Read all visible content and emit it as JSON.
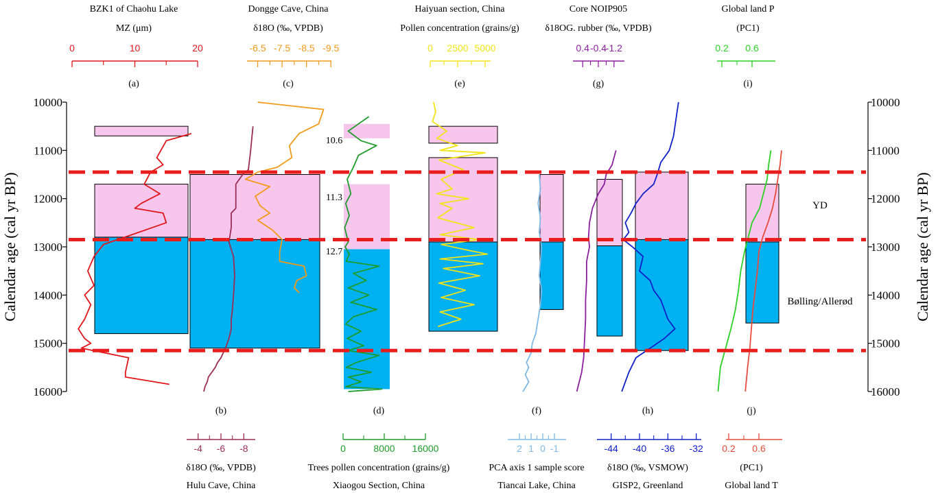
{
  "figure": {
    "y_axis": {
      "label": "Calendar age (cal yr BP)",
      "ticks": [
        10000,
        11000,
        12000,
        13000,
        14000,
        15000,
        16000
      ],
      "range": [
        10000,
        16000
      ]
    },
    "events": [
      {
        "label": "YD",
        "age": 12150
      },
      {
        "label": "Bølling/Allerød",
        "age": 14100
      }
    ],
    "intervals_labels": [
      {
        "text": "10.6",
        "age": 10770
      },
      {
        "text": "11.3",
        "age": 11870
      },
      {
        "text": "12.7",
        "age": 13700
      }
    ],
    "boundaries": [
      11450,
      12850,
      15150
    ]
  },
  "chart_data": {
    "type": "line",
    "title": "",
    "panels": [
      {
        "id": "a",
        "letter": "(a)",
        "title": "BZK1 of Chaohu Lake",
        "unit": "MZ (μm)",
        "axis_position": "top",
        "color": "#e0161b",
        "xlim": [
          0,
          20
        ],
        "ticks": [
          0,
          10,
          20
        ],
        "x": [
          19,
          15,
          13.5,
          14.5,
          12.5,
          11.5,
          14,
          11,
          10,
          14.5,
          15,
          9.5,
          5,
          3.5,
          2.5,
          3.5,
          2,
          3,
          2,
          1,
          2,
          3,
          1.5,
          9,
          8.5,
          8.5,
          15.5
        ],
        "y": [
          10650,
          10800,
          11150,
          11300,
          11450,
          11700,
          11900,
          12100,
          12200,
          12300,
          12500,
          12750,
          12950,
          13200,
          13500,
          13800,
          14000,
          14200,
          14500,
          14700,
          14900,
          15000,
          15100,
          15300,
          15600,
          15700,
          15850
        ]
      },
      {
        "id": "b",
        "letter": "(b)",
        "title": "Hulu Cave, China",
        "unit": "δ18O (‰, VPDB)",
        "axis_position": "bottom",
        "color": "#9b2d55",
        "xlim": [
          -3,
          -9
        ],
        "ticks": [
          -4,
          -6,
          -8
        ],
        "x": [
          -8.8,
          -8.6,
          -8.4,
          -7.9,
          -7.3,
          -7.3,
          -6.9,
          -6.9,
          -6.7,
          -7.1,
          -7.2,
          -7.1,
          -7.0,
          -6.9,
          -6.9,
          -6.7,
          -6.4,
          -6.2,
          -6.0,
          -5.7,
          -5.5,
          -5.2,
          -4.9,
          -4.8,
          -4.6,
          -4.5
        ],
        "y": [
          10500,
          11000,
          11400,
          11500,
          11700,
          12200,
          12300,
          12600,
          12900,
          13200,
          13600,
          14000,
          14300,
          14500,
          14700,
          14900,
          15100,
          15200,
          15300,
          15400,
          15500,
          15600,
          15700,
          15800,
          15900,
          16000
        ]
      },
      {
        "id": "c",
        "letter": "(c)",
        "title": "Dongge Cave, China",
        "unit": "δ18O (‰, VPDB)",
        "axis_position": "top",
        "color": "#f29a1a",
        "xlim": [
          -5.5,
          -10
        ],
        "ticks": [
          -6.5,
          -7.5,
          -8.5,
          -9.5
        ],
        "x": [
          -6.5,
          -9.2,
          -9.0,
          -8.2,
          -7.8,
          -7.9,
          -7.3,
          -6.5,
          -6.0,
          -7.0,
          -6.4,
          -6.6,
          -7.0,
          -6.5,
          -7.1,
          -7.5,
          -7.4,
          -7.4,
          -8.4,
          -8.5,
          -8.1,
          -8.0,
          -8.2
        ],
        "y": [
          10000,
          10150,
          10450,
          10650,
          10900,
          11150,
          11350,
          11450,
          11600,
          11750,
          11950,
          12150,
          12300,
          12450,
          12650,
          12850,
          13100,
          13300,
          13400,
          13600,
          13700,
          13850,
          13950
        ]
      },
      {
        "id": "d",
        "letter": "(d)",
        "title": "Xiaogou Section, China",
        "unit": "Trees pollen concentration (grains/g)",
        "axis_position": "bottom",
        "color": "#1e9c2a",
        "xlim": [
          0,
          16000
        ],
        "ticks": [
          0,
          8000,
          16000
        ],
        "x": [
          5000,
          1000,
          3500,
          6500,
          3000,
          2000,
          800,
          1500,
          500,
          1200,
          300,
          1000,
          400,
          1200,
          600,
          7000,
          2000,
          4500,
          1000,
          5000,
          1500,
          6500,
          2000,
          500,
          3500,
          800,
          4000,
          1000,
          7000,
          2500,
          600,
          5500,
          1000,
          3500,
          500,
          7500,
          1000
        ],
        "y": [
          10300,
          10600,
          10800,
          10900,
          11100,
          11350,
          11600,
          11900,
          12100,
          12350,
          12600,
          12900,
          13000,
          13150,
          13300,
          13400,
          13550,
          13700,
          13850,
          14000,
          14150,
          14300,
          14450,
          14600,
          14750,
          14900,
          15050,
          15150,
          15250,
          15400,
          15500,
          15600,
          15700,
          15800,
          15900,
          15950,
          16000
        ]
      },
      {
        "id": "e",
        "letter": "(e)",
        "title": "Haiyuan section, China",
        "unit": "Pollen concentration (grains/g)",
        "axis_position": "top",
        "color": "#f2e417",
        "xlim": [
          0,
          5500
        ],
        "ticks": [
          0,
          2500,
          5000
        ],
        "x": [
          300,
          500,
          200,
          1500,
          600,
          2500,
          900,
          5000,
          800,
          3000,
          1000,
          2000,
          600,
          3500,
          900,
          2000,
          700,
          4000,
          900,
          4500,
          1000,
          3000,
          5200,
          900,
          4800,
          1200,
          4500,
          800,
          3200,
          1000,
          4000,
          900,
          2800,
          700
        ],
        "y": [
          10000,
          10200,
          10400,
          10600,
          10750,
          10900,
          11000,
          11050,
          11200,
          11400,
          11600,
          11800,
          11900,
          12000,
          12100,
          12200,
          12400,
          12600,
          12750,
          12850,
          12950,
          13050,
          13150,
          13250,
          13350,
          13450,
          13600,
          13750,
          13900,
          14050,
          14200,
          14350,
          14500,
          14650
        ]
      },
      {
        "id": "f",
        "letter": "(f)",
        "title": "Tiancai Lake, China",
        "unit": "PCA axis 1 sample score",
        "axis_position": "bottom",
        "color": "#7fb8e6",
        "xlim": [
          3,
          -2
        ],
        "ticks": [
          2,
          1,
          0,
          -1
        ],
        "x": [
          0.3,
          0.2,
          0.4,
          0.2,
          0.3,
          0.1,
          0.2,
          0.3,
          0.1,
          0.2,
          0.4,
          0.6,
          0.9,
          1.0,
          1.4,
          1.2,
          1.5,
          1.2,
          1.7
        ],
        "y": [
          11500,
          11800,
          12100,
          12400,
          12700,
          13000,
          13300,
          13600,
          13900,
          14200,
          14500,
          14800,
          15000,
          15200,
          15400,
          15500,
          15650,
          15800,
          16000
        ]
      },
      {
        "id": "g",
        "letter": "(g)",
        "title": "Core NOIP905",
        "unit": "δ18OG. rubber (‰, VPDB)",
        "axis_position": "top",
        "color": "#8a1f9e",
        "xlim": [
          1.0,
          -1.8
        ],
        "ticks": [
          0.4,
          -0.4,
          -1.2
        ],
        "x": [
          -1.3,
          -1.1,
          -0.8,
          -0.7,
          -0.4,
          -0.1,
          0.05,
          0.1,
          0.05,
          0.2,
          0.2,
          0.25,
          0.25,
          0.3,
          0.35,
          0.45,
          0.7
        ],
        "y": [
          11000,
          11300,
          11500,
          11700,
          11900,
          12200,
          12500,
          12800,
          13000,
          13300,
          13700,
          14100,
          14500,
          14900,
          15300,
          15600,
          16000
        ]
      },
      {
        "id": "h",
        "letter": "(h)",
        "title": "GISP2, Greenland",
        "unit": "δ18O (‰, VSMOW)",
        "axis_position": "bottom",
        "color": "#1020c8",
        "xlim": [
          -46,
          -31
        ],
        "ticks": [
          -44,
          -40,
          -36,
          -32
        ],
        "x": [
          -34.5,
          -34.8,
          -35.2,
          -35.8,
          -37.0,
          -37.5,
          -38.0,
          -39.5,
          -40.5,
          -41.2,
          -42.0,
          -41.5,
          -42.3,
          -41.0,
          -39.5,
          -40.0,
          -38.5,
          -38.0,
          -37.0,
          -36.5,
          -36.0,
          -35.0,
          -36.5,
          -38.5,
          -40.5,
          -41.5,
          -42.0,
          -42.5
        ],
        "y": [
          10000,
          10300,
          10700,
          11000,
          11250,
          11500,
          11700,
          11900,
          12100,
          12300,
          12500,
          12700,
          12850,
          13000,
          13200,
          13500,
          13700,
          13900,
          14100,
          14300,
          14500,
          14700,
          14900,
          15100,
          15300,
          15600,
          15800,
          16000
        ]
      },
      {
        "id": "i",
        "letter": "(i)",
        "title": "Global land P",
        "unit": "(PC1)",
        "axis_position": "top",
        "color": "#2ad124",
        "xlim": [
          0.0,
          1.0
        ],
        "ticks": [
          0.2,
          0.6
        ],
        "x": [
          0.85,
          0.82,
          0.8,
          0.75,
          0.7,
          0.6,
          0.55,
          0.5,
          0.45,
          0.42,
          0.38,
          0.32,
          0.25,
          0.18,
          0.15
        ],
        "y": [
          11000,
          11300,
          11600,
          11900,
          12200,
          12500,
          12800,
          13100,
          13500,
          13900,
          14300,
          14700,
          15100,
          15500,
          16000
        ]
      },
      {
        "id": "j",
        "letter": "(j)",
        "title": "Global land T",
        "unit": "(PC1)",
        "axis_position": "bottom",
        "color": "#e84b3c",
        "xlim": [
          0.0,
          1.0
        ],
        "ticks": [
          0.2,
          0.6
        ],
        "x": [
          0.9,
          0.88,
          0.85,
          0.82,
          0.78,
          0.72,
          0.65,
          0.6,
          0.58,
          0.55,
          0.52,
          0.5,
          0.48,
          0.45,
          0.42
        ],
        "y": [
          11000,
          11300,
          11600,
          11900,
          12200,
          12500,
          12800,
          13100,
          13500,
          13900,
          14300,
          14700,
          15100,
          15500,
          16000
        ]
      }
    ],
    "boxes": [
      {
        "panel": "a",
        "age_start": 10500,
        "age_end": 10700,
        "color": "#f7c6ec"
      },
      {
        "panel": "a",
        "age_start": 11700,
        "age_end": 12800,
        "color": "#f7c6ec"
      },
      {
        "panel": "a",
        "age_start": 12800,
        "age_end": 14800,
        "color": "#00b1f2"
      },
      {
        "panel": "bc",
        "age_start": 11500,
        "age_end": 12850,
        "color": "#f7c6ec"
      },
      {
        "panel": "bc",
        "age_start": 12850,
        "age_end": 15100,
        "color": "#00b1f2"
      },
      {
        "panel": "d",
        "age_start": 10450,
        "age_end": 10750,
        "color": "#f7c6ec"
      },
      {
        "panel": "d",
        "age_start": 11700,
        "age_end": 13050,
        "color": "#f7c6ec"
      },
      {
        "panel": "d",
        "age_start": 13050,
        "age_end": 15950,
        "color": "#00b1f2"
      },
      {
        "panel": "e",
        "age_start": 10500,
        "age_end": 10850,
        "color": "#f7c6ec"
      },
      {
        "panel": "e",
        "age_start": 11150,
        "age_end": 12900,
        "color": "#f7c6ec"
      },
      {
        "panel": "e",
        "age_start": 12900,
        "age_end": 14750,
        "color": "#00b1f2"
      },
      {
        "panel": "f",
        "age_start": 11500,
        "age_end": 12900,
        "color": "#f7c6ec"
      },
      {
        "panel": "f",
        "age_start": 12900,
        "age_end": 14300,
        "color": "#00b1f2"
      },
      {
        "panel": "g",
        "age_start": 11600,
        "age_end": 12980,
        "color": "#f7c6ec"
      },
      {
        "panel": "g",
        "age_start": 12980,
        "age_end": 14850,
        "color": "#00b1f2"
      },
      {
        "panel": "h",
        "age_start": 11450,
        "age_end": 12850,
        "color": "#f7c6ec"
      },
      {
        "panel": "h",
        "age_start": 12850,
        "age_end": 15150,
        "color": "#00b1f2"
      },
      {
        "panel": "ij",
        "age_start": 11700,
        "age_end": 12900,
        "color": "#f7c6ec"
      },
      {
        "panel": "ij",
        "age_start": 12900,
        "age_end": 14580,
        "color": "#00b1f2"
      }
    ],
    "boundary_color": "#e81e1e",
    "ylabel": "Calendar age (cal yr BP)",
    "ylim": [
      10000,
      16000
    ]
  }
}
